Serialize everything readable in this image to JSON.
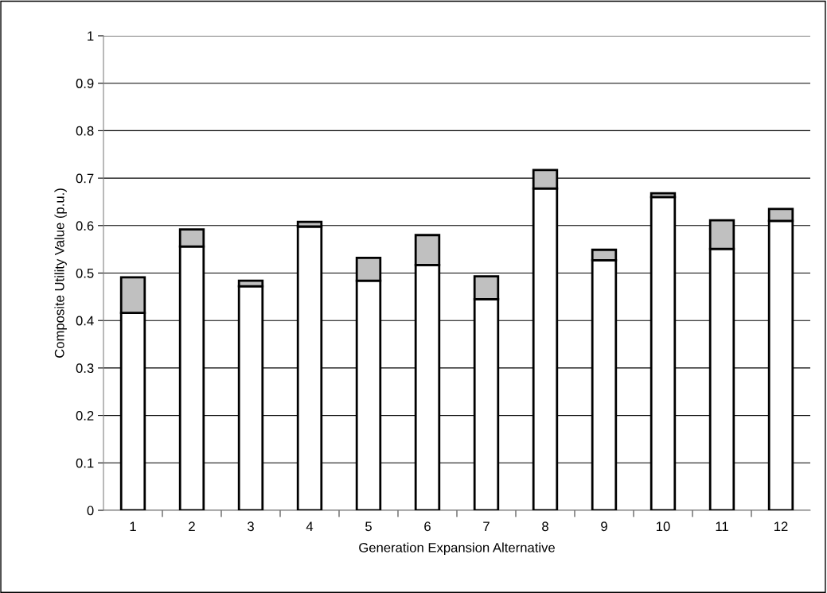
{
  "chart_data": {
    "type": "bar",
    "stacked": true,
    "xlabel": "Generation Expansion Alternative",
    "ylabel": "Composite Utility Value (p.u.)",
    "categories": [
      "1",
      "2",
      "3",
      "4",
      "5",
      "6",
      "7",
      "8",
      "9",
      "10",
      "11",
      "12"
    ],
    "series": [
      {
        "color": "#ffffff",
        "values": [
          0.416,
          0.556,
          0.472,
          0.598,
          0.484,
          0.517,
          0.445,
          0.678,
          0.527,
          0.66,
          0.551,
          0.61
        ]
      },
      {
        "color": "#c0c0c0",
        "values": [
          0.075,
          0.036,
          0.012,
          0.01,
          0.048,
          0.063,
          0.048,
          0.039,
          0.022,
          0.008,
          0.06,
          0.025
        ]
      }
    ],
    "ylim": [
      0,
      1
    ],
    "yticks": [
      0,
      0.1,
      0.2,
      0.3,
      0.4,
      0.5,
      0.6,
      0.7,
      0.8,
      0.9,
      1
    ],
    "grid": "y"
  }
}
